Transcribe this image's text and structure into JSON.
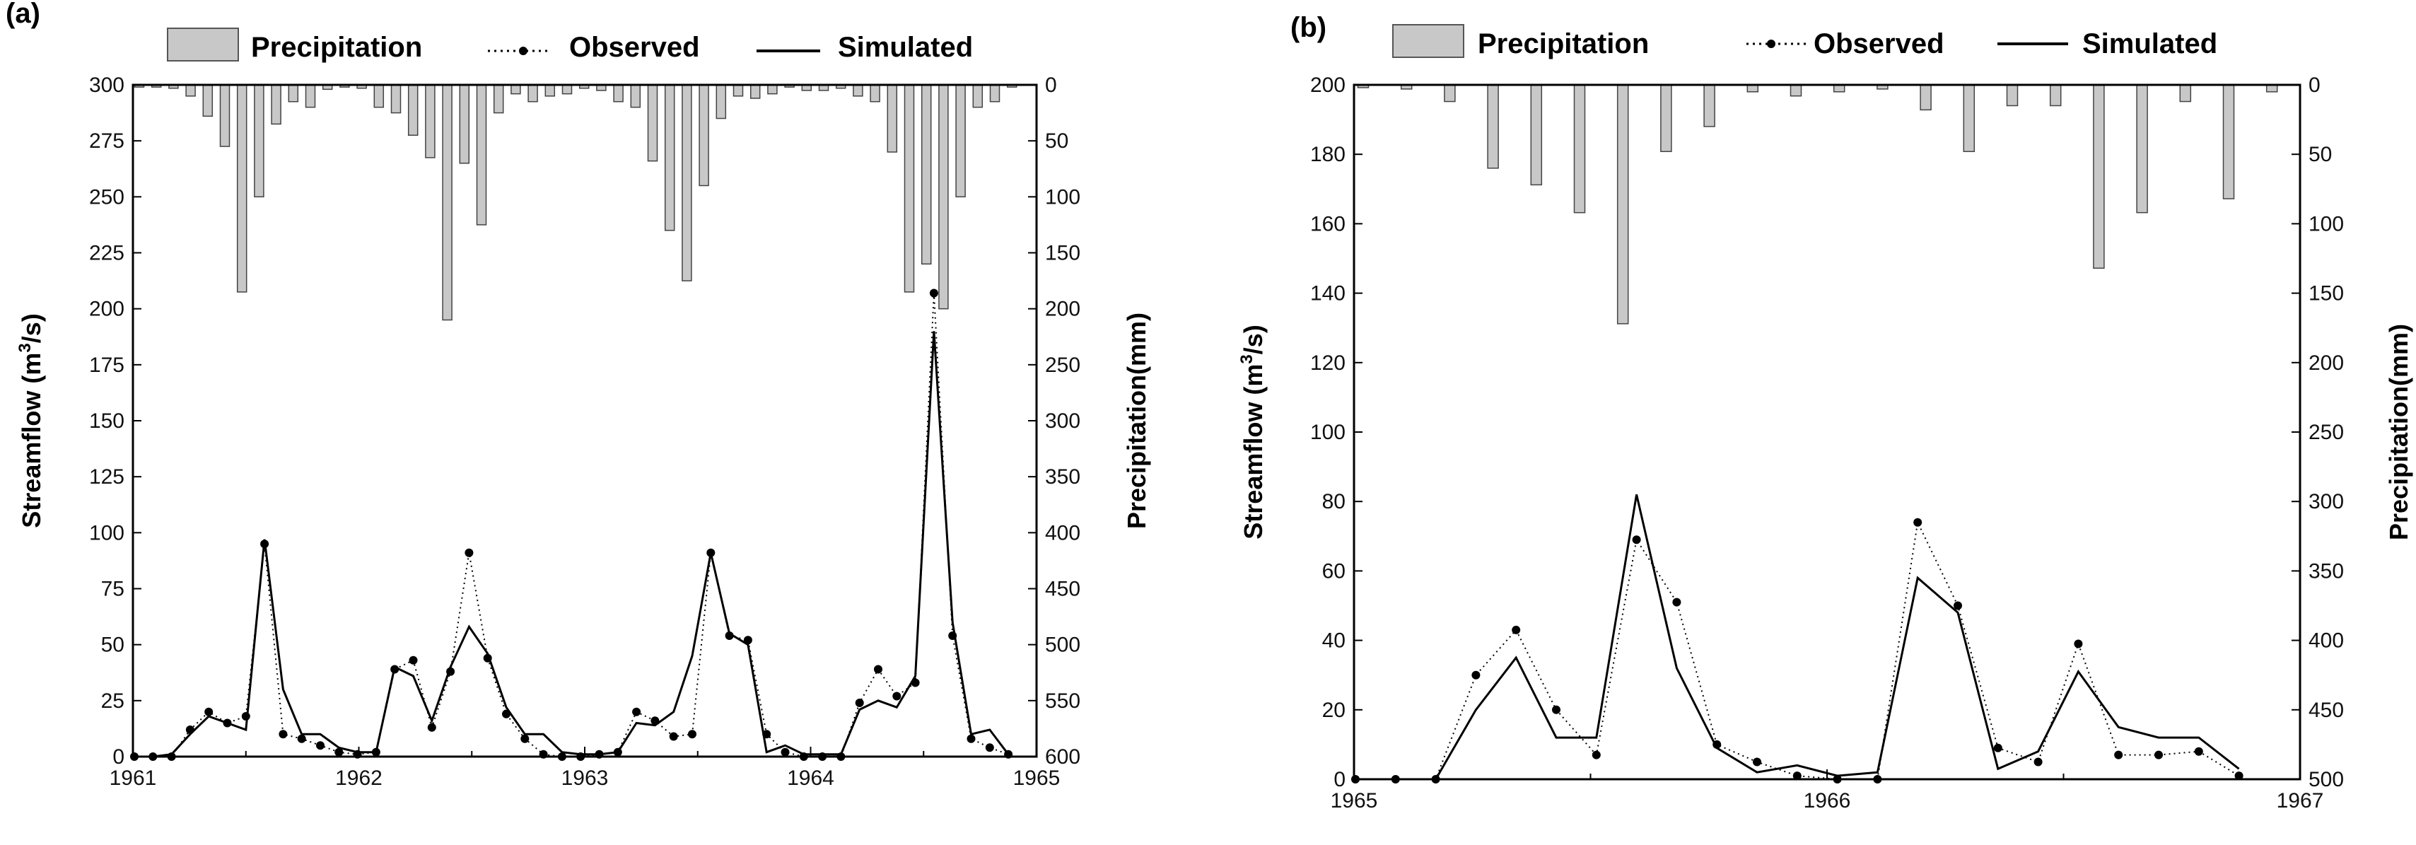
{
  "chart_data": [
    {
      "type": "line",
      "panel_label": "(a)",
      "xlabel": "",
      "ylabel_main": "Streamflow (m",
      "ylabel_sup": "3",
      "ylabel_tail": "/s)",
      "ylabel_right": "Precipitation(mm)",
      "xlim": [
        1961,
        1965
      ],
      "xticks": [
        "1961",
        "1962",
        "1963",
        "1964",
        "1965"
      ],
      "ylim_left": [
        0,
        300
      ],
      "yticks_left": [
        "0",
        "25",
        "50",
        "75",
        "100",
        "125",
        "150",
        "175",
        "200",
        "225",
        "250",
        "275",
        "300"
      ],
      "ylim_right": [
        0,
        600
      ],
      "yticks_right": [
        "0",
        "50",
        "100",
        "150",
        "200",
        "250",
        "300",
        "350",
        "400",
        "450",
        "500",
        "550",
        "600"
      ],
      "legend": [
        "Precipitation",
        "Observed",
        "Simulated"
      ],
      "series": [
        {
          "name": "Precipitation",
          "values": [
            2,
            2,
            3,
            10,
            28,
            55,
            185,
            100,
            35,
            15,
            20,
            4,
            2,
            3,
            20,
            25,
            45,
            65,
            210,
            70,
            125,
            25,
            8,
            15,
            10,
            8,
            3,
            5,
            15,
            20,
            68,
            130,
            175,
            90,
            30,
            10,
            12,
            8,
            2,
            5,
            5,
            3,
            10,
            15,
            60,
            185,
            160,
            200,
            100,
            20,
            15,
            2
          ]
        },
        {
          "name": "Observed",
          "values": [
            0,
            0,
            0,
            12,
            20,
            15,
            18,
            95,
            10,
            8,
            5,
            2,
            1,
            2,
            39,
            43,
            13,
            38,
            91,
            44,
            19,
            8,
            1,
            0,
            0,
            1,
            2,
            20,
            16,
            9,
            10,
            91,
            54,
            52,
            10,
            2,
            0,
            0,
            0,
            24,
            39,
            27,
            33,
            207,
            54,
            8,
            4,
            1
          ]
        },
        {
          "name": "Simulated",
          "values": [
            0,
            0,
            1,
            10,
            18,
            15,
            12,
            97,
            30,
            10,
            10,
            4,
            2,
            2,
            40,
            36,
            16,
            40,
            58,
            46,
            22,
            10,
            10,
            2,
            1,
            1,
            2,
            15,
            14,
            20,
            45,
            91,
            55,
            50,
            2,
            5,
            1,
            1,
            1,
            21,
            25,
            22,
            36,
            190,
            60,
            10,
            12,
            1
          ]
        }
      ]
    },
    {
      "type": "line",
      "panel_label": "(b)",
      "xlabel": "",
      "ylabel_main": "Streamflow (m",
      "ylabel_sup": "3",
      "ylabel_tail": "/s)",
      "ylabel_right": "Precipitation(mm)",
      "xlim": [
        1965,
        1967
      ],
      "xticks": [
        "1965",
        "1966",
        "1967"
      ],
      "ylim_left": [
        0,
        200
      ],
      "yticks_left": [
        "0",
        "20",
        "40",
        "60",
        "80",
        "100",
        "120",
        "140",
        "160",
        "180",
        "200"
      ],
      "ylim_right": [
        0,
        500
      ],
      "yticks_right": [
        "0",
        "50",
        "100",
        "150",
        "200",
        "250",
        "300",
        "350",
        "400",
        "450",
        "500"
      ],
      "legend": [
        "Precipitation",
        "Observed",
        "Simulated"
      ],
      "series": [
        {
          "name": "Precipitation",
          "values": [
            2,
            3,
            12,
            60,
            72,
            92,
            172,
            48,
            30,
            5,
            8,
            5,
            3,
            18,
            48,
            15,
            15,
            132,
            92,
            12,
            82,
            5
          ]
        },
        {
          "name": "Observed",
          "values": [
            0,
            0,
            0,
            30,
            43,
            20,
            7,
            69,
            51,
            10,
            5,
            1,
            0,
            0,
            74,
            50,
            9,
            5,
            39,
            7,
            7,
            8,
            1
          ]
        },
        {
          "name": "Simulated",
          "values": [
            0,
            0,
            0,
            20,
            35,
            12,
            12,
            82,
            32,
            9,
            2,
            4,
            1,
            2,
            58,
            48,
            3,
            8,
            31,
            15,
            12,
            12,
            3
          ]
        }
      ]
    }
  ]
}
